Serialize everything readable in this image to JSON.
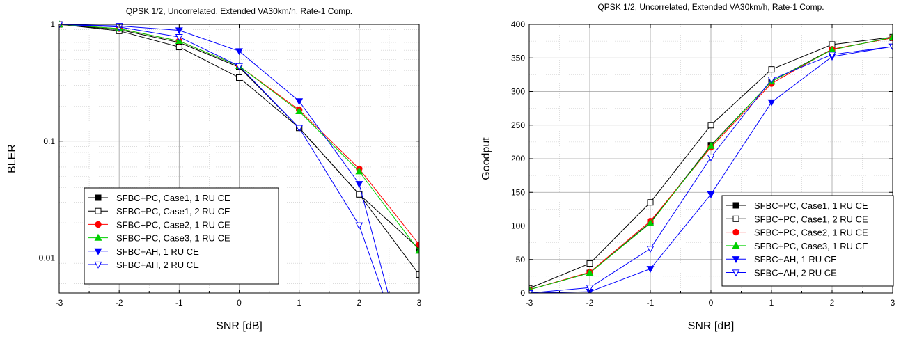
{
  "chart_data": [
    {
      "type": "line",
      "title": "QPSK 1/2, Uncorrelated, Extended VA30km/h, Rate-1 Comp.",
      "xlabel": "SNR [dB]",
      "ylabel": "BLER",
      "yscale": "log",
      "xlim": [
        -3,
        3
      ],
      "ylim": [
        0.005,
        1
      ],
      "xticks": [
        -3,
        -2,
        -1,
        0,
        1,
        2,
        3
      ],
      "xtick_labels": [
        "-3",
        "-2",
        "-1",
        "0",
        "1",
        "2",
        "3"
      ],
      "yticks": [
        1,
        0.1,
        0.01
      ],
      "ytick_labels": [
        "1",
        "0.1",
        "0.01"
      ],
      "grid": true,
      "legend_position": "bottom-left",
      "x": [
        -3,
        -2,
        -1,
        0,
        1,
        2,
        3
      ],
      "series": [
        {
          "name": "SFBC+PC, Case1, 1 RU CE",
          "color": "#000000",
          "marker": "square-filled",
          "values": [
            1.0,
            0.9,
            0.7,
            0.43,
            0.13,
            0.035,
            0.012
          ]
        },
        {
          "name": "SFBC+PC, Case1, 2 RU CE",
          "color": "#000000",
          "marker": "square-open",
          "values": [
            1.0,
            0.88,
            0.64,
            0.35,
            0.13,
            0.035,
            0.0072
          ]
        },
        {
          "name": "SFBC+PC, Case2, 1 RU CE",
          "color": "#ff0000",
          "marker": "circle-filled",
          "values": [
            1.0,
            0.92,
            0.72,
            0.44,
            0.185,
            0.058,
            0.013
          ]
        },
        {
          "name": "SFBC+PC, Case3, 1 RU CE",
          "color": "#00d000",
          "marker": "triangle-up-filled",
          "values": [
            1.0,
            0.92,
            0.72,
            0.44,
            0.18,
            0.055,
            0.0115
          ]
        },
        {
          "name": "SFBC+AH, 1 RU CE",
          "color": "#0000ff",
          "marker": "triangle-down-filled",
          "values": [
            1.0,
            0.97,
            0.89,
            0.59,
            0.22,
            0.043,
            null
          ]
        },
        {
          "name": "SFBC+AH, 2 RU CE",
          "color": "#0000ff",
          "marker": "triangle-down-open",
          "values": [
            1.0,
            0.95,
            0.78,
            0.44,
            0.13,
            0.019,
            null
          ]
        }
      ],
      "offscale_segments": [
        [
          2,
          2.5
        ],
        [
          2,
          2.42
        ]
      ]
    },
    {
      "type": "line",
      "title": "QPSK 1/2, Uncorrelated, Extended VA30km/h, Rate-1 Comp.",
      "xlabel": "SNR [dB]",
      "ylabel": "Goodput",
      "xlim": [
        -3,
        3
      ],
      "ylim": [
        0,
        400
      ],
      "xticks": [
        -3,
        -2,
        -1,
        0,
        1,
        2,
        3
      ],
      "xtick_labels": [
        "-3",
        "-2",
        "-1",
        "0",
        "1",
        "2",
        "3"
      ],
      "yticks": [
        0,
        50,
        100,
        150,
        200,
        250,
        300,
        350,
        400
      ],
      "ytick_labels": [
        "0",
        "50",
        "100",
        "150",
        "200",
        "250",
        "300",
        "350",
        "400"
      ],
      "grid": true,
      "legend_position": "bottom-right",
      "x": [
        -3,
        -2,
        -1,
        0,
        1,
        2,
        3
      ],
      "series": [
        {
          "name": "SFBC+PC, Case1, 1 RU CE",
          "color": "#000000",
          "marker": "square-filled",
          "values": [
            5,
            30,
            105,
            220,
            315,
            363,
            380
          ]
        },
        {
          "name": "SFBC+PC, Case1, 2 RU CE",
          "color": "#000000",
          "marker": "square-open",
          "values": [
            7,
            44,
            135,
            250,
            333,
            370,
            381
          ]
        },
        {
          "name": "SFBC+PC, Case2, 1 RU CE",
          "color": "#ff0000",
          "marker": "circle-filled",
          "values": [
            5,
            31,
            107,
            217,
            312,
            363,
            380
          ]
        },
        {
          "name": "SFBC+PC, Case3, 1 RU CE",
          "color": "#00d000",
          "marker": "triangle-up-filled",
          "values": [
            5,
            30,
            104,
            219,
            315,
            362,
            381
          ]
        },
        {
          "name": "SFBC+AH, 1 RU CE",
          "color": "#0000ff",
          "marker": "triangle-down-filled",
          "values": [
            0,
            2,
            36,
            147,
            284,
            352,
            367
          ]
        },
        {
          "name": "SFBC+AH, 2 RU CE",
          "color": "#0000ff",
          "marker": "triangle-down-open",
          "values": [
            0,
            8,
            66,
            202,
            318,
            355,
            367
          ]
        }
      ]
    }
  ]
}
